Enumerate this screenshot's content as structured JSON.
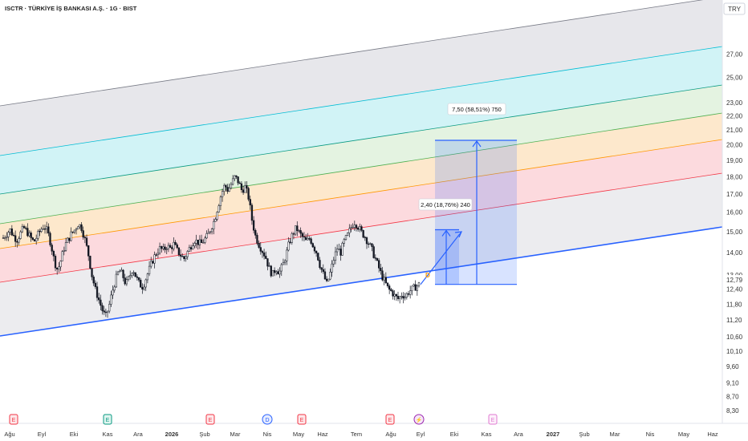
{
  "header": {
    "title": "ISCTR · TÜRKİYE İŞ BANKASI A.Ş. · 1G · BIST"
  },
  "currency_label": "TRY",
  "colors": {
    "regression_line": "#2962ff",
    "candle": "#131722",
    "measure": "#2962ff",
    "bands": [
      "#f2f2f2",
      "#fbd6da",
      "#fde6c6",
      "#d6efd9",
      "#c9f1f3",
      "#e0e0e8"
    ]
  },
  "chart_data": {
    "type": "candlestick",
    "title": "ISCTR · TÜRKİYE İŞ BANKASI A.Ş. · 1G · BIST",
    "y_scale": "log",
    "ylim": [
      8.1,
      30.0
    ],
    "y_ticks": [
      "27,00",
      "25,00",
      "23,00",
      "22,00",
      "21,00",
      "20,00",
      "19,00",
      "18,00",
      "17,00",
      "16,00",
      "15,00",
      "14,00",
      "13,00",
      "12,79",
      "12,40",
      "11,80",
      "11,20",
      "10,60",
      "10,10",
      "9,60",
      "9,10",
      "8,70",
      "8,30"
    ],
    "x_ticks": [
      {
        "label": "Ağu",
        "bold": false
      },
      {
        "label": "Eyl",
        "bold": false
      },
      {
        "label": "Eki",
        "bold": false
      },
      {
        "label": "Kas",
        "bold": false
      },
      {
        "label": "Ara",
        "bold": false
      },
      {
        "label": "2026",
        "bold": true
      },
      {
        "label": "Şub",
        "bold": false
      },
      {
        "label": "Mar",
        "bold": false
      },
      {
        "label": "Nis",
        "bold": false
      },
      {
        "label": "May",
        "bold": false
      },
      {
        "label": "Haz",
        "bold": false
      },
      {
        "label": "Tem",
        "bold": false
      },
      {
        "label": "Ağu",
        "bold": false
      },
      {
        "label": "Eyl",
        "bold": false
      },
      {
        "label": "Eki",
        "bold": false
      },
      {
        "label": "Kas",
        "bold": false
      },
      {
        "label": "Ara",
        "bold": false
      },
      {
        "label": "2027",
        "bold": true
      },
      {
        "label": "Şub",
        "bold": false
      },
      {
        "label": "Mar",
        "bold": false
      },
      {
        "label": "Nis",
        "bold": false
      },
      {
        "label": "May",
        "bold": false
      },
      {
        "label": "Haz",
        "bold": false
      }
    ],
    "close_series": [
      14.7,
      14.9,
      15.1,
      14.8,
      14.6,
      14.9,
      15.2,
      15.0,
      14.7,
      14.5,
      14.8,
      15.1,
      15.3,
      15.0,
      14.4,
      13.6,
      13.2,
      13.7,
      14.3,
      14.6,
      14.9,
      15.1,
      15.4,
      15.2,
      14.6,
      13.9,
      13.0,
      12.4,
      12.0,
      11.6,
      11.3,
      11.7,
      12.3,
      12.8,
      13.2,
      13.0,
      12.6,
      12.9,
      13.3,
      12.9,
      12.6,
      12.5,
      12.9,
      13.3,
      13.7,
      14.0,
      14.2,
      14.1,
      14.3,
      14.2,
      14.4,
      14.1,
      13.9,
      13.7,
      14.0,
      14.3,
      14.6,
      14.5,
      14.4,
      14.6,
      14.8,
      15.2,
      15.6,
      16.3,
      17.0,
      17.5,
      17.2,
      17.6,
      18.0,
      17.7,
      17.2,
      17.4,
      16.8,
      15.6,
      14.8,
      14.4,
      14.1,
      13.8,
      13.3,
      13.0,
      13.3,
      13.1,
      13.4,
      13.9,
      14.5,
      14.9,
      15.2,
      14.9,
      14.7,
      14.5,
      14.7,
      14.3,
      14.0,
      13.4,
      13.0,
      12.6,
      13.1,
      13.7,
      14.2,
      14.0,
      14.5,
      14.8,
      15.2,
      15.5,
      15.3,
      15.0,
      14.8,
      14.5,
      14.2,
      13.8,
      13.4,
      13.0,
      12.7,
      12.4,
      12.3,
      12.1,
      12.0,
      12.2,
      12.1,
      12.3,
      12.4,
      12.5,
      12.6
    ],
    "series_date_range": [
      "Ağu",
      "Eyl"
    ],
    "annotations": [
      {
        "id": "measure-small",
        "text": "2,40 (18,76%) 240"
      },
      {
        "id": "measure-large",
        "text": "7,50 (58,51%) 750"
      },
      {
        "id": "dividend-marker",
        "text": "D"
      }
    ],
    "event_markers": [
      "E",
      "E",
      "E",
      "D",
      "E",
      "E",
      "⚡",
      "E"
    ],
    "grid": false,
    "legend": "none"
  }
}
